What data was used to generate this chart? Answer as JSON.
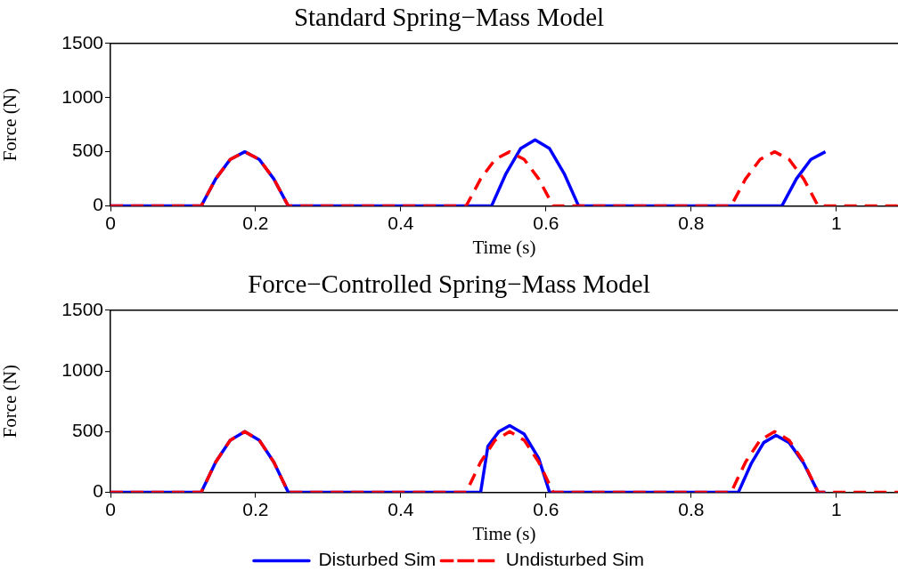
{
  "chart_data": [
    {
      "type": "line",
      "title": "Standard Spring−Mass Model",
      "xlabel": "Time (s)",
      "ylabel": "Force (N)",
      "xlim": [
        0,
        1.085
      ],
      "xticks": [
        0,
        0.2,
        0.4,
        0.6,
        0.8,
        1
      ],
      "ylim": [
        0,
        1500
      ],
      "yticks": [
        0,
        500,
        1000,
        1500
      ],
      "grid": false,
      "legend": false,
      "marker": "none",
      "series": [
        {
          "color": "#0000ff",
          "line_style": "solid",
          "x": [
            0,
            0.125,
            0.145,
            0.165,
            0.185,
            0.205,
            0.225,
            0.245,
            0.525,
            0.545,
            0.565,
            0.585,
            0.605,
            0.625,
            0.645,
            0.925,
            0.945,
            0.965,
            0.985
          ],
          "values": [
            0,
            0,
            250,
            430,
            500,
            430,
            250,
            0,
            0,
            300,
            530,
            610,
            530,
            300,
            0,
            0,
            250,
            430,
            500
          ]
        },
        {
          "color": "#ff0000",
          "line_style": "dashed",
          "x": [
            0,
            0.125,
            0.145,
            0.165,
            0.185,
            0.205,
            0.225,
            0.245,
            0.49,
            0.51,
            0.53,
            0.55,
            0.57,
            0.59,
            0.61,
            0.855,
            0.875,
            0.895,
            0.915,
            0.935,
            0.955,
            0.975,
            1.085
          ],
          "values": [
            0,
            0,
            250,
            430,
            500,
            430,
            250,
            0,
            0,
            250,
            430,
            500,
            430,
            250,
            0,
            0,
            250,
            430,
            500,
            430,
            250,
            0,
            0
          ]
        }
      ]
    },
    {
      "type": "line",
      "title": "Force−Controlled Spring−Mass Model",
      "xlabel": "Time (s)",
      "ylabel": "Force (N)",
      "xlim": [
        0,
        1.085
      ],
      "xticks": [
        0,
        0.2,
        0.4,
        0.6,
        0.8,
        1
      ],
      "ylim": [
        0,
        1500
      ],
      "yticks": [
        0,
        500,
        1000,
        1500
      ],
      "grid": false,
      "legend": "bottom",
      "marker": "none",
      "series": [
        {
          "name": "Disturbed Sim",
          "color": "#0000ff",
          "line_style": "solid",
          "x": [
            0,
            0.125,
            0.145,
            0.165,
            0.185,
            0.205,
            0.225,
            0.245,
            0.51,
            0.52,
            0.535,
            0.55,
            0.57,
            0.59,
            0.605,
            0.865,
            0.883,
            0.9,
            0.917,
            0.935,
            0.955,
            0.975,
            0.985
          ],
          "values": [
            0,
            0,
            250,
            430,
            500,
            430,
            250,
            0,
            0,
            380,
            500,
            550,
            480,
            280,
            0,
            0,
            240,
            410,
            470,
            410,
            240,
            0,
            0
          ]
        },
        {
          "name": "Undisturbed Sim",
          "color": "#ff0000",
          "line_style": "dashed",
          "x": [
            0,
            0.125,
            0.145,
            0.165,
            0.185,
            0.205,
            0.225,
            0.245,
            0.49,
            0.51,
            0.53,
            0.55,
            0.57,
            0.59,
            0.61,
            0.855,
            0.875,
            0.895,
            0.915,
            0.935,
            0.955,
            0.975,
            1.085
          ],
          "values": [
            0,
            0,
            250,
            430,
            500,
            430,
            250,
            0,
            0,
            250,
            430,
            500,
            430,
            250,
            0,
            0,
            250,
            430,
            500,
            430,
            250,
            0,
            0
          ]
        }
      ]
    }
  ]
}
